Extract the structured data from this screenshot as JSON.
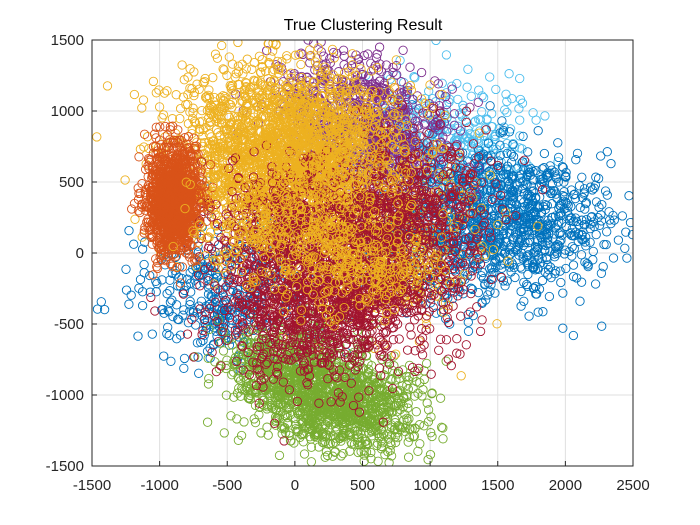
{
  "chart_data": {
    "type": "scatter",
    "title": "True Clustering Result",
    "xlabel": "",
    "ylabel": "",
    "xlim": [
      -1500,
      2500
    ],
    "ylim": [
      -1500,
      1500
    ],
    "xticks": [
      -1500,
      -1000,
      -500,
      0,
      500,
      1000,
      1500,
      2000,
      2500
    ],
    "yticks": [
      -1500,
      -1000,
      -500,
      0,
      500,
      1000,
      1500
    ],
    "xtick_labels": [
      "-1500",
      "-1000",
      "-500",
      "0",
      "500",
      "1000",
      "1500",
      "2000",
      "2500"
    ],
    "ytick_labels": [
      "-1500",
      "-1000",
      "-500",
      "0",
      "500",
      "1000",
      "1500"
    ],
    "grid": true,
    "marker": "open-circle",
    "series": [
      {
        "color": "#4DBEEE",
        "centers": [
          [
            900,
            800
          ],
          [
            1300,
            700
          ]
        ],
        "spread": [
          250,
          220
        ],
        "count": 450
      },
      {
        "color": "#0072BD",
        "centers": [
          [
            1500,
            300
          ],
          [
            1800,
            200
          ],
          [
            -500,
            -300
          ],
          [
            1100,
            100
          ]
        ],
        "spread": [
          300,
          250
        ],
        "count": 1600
      },
      {
        "color": "#7E2F8E",
        "centers": [
          [
            350,
            1000
          ],
          [
            650,
            750
          ]
        ],
        "spread": [
          250,
          220
        ],
        "count": 900
      },
      {
        "color": "#77AC30",
        "centers": [
          [
            200,
            -1000
          ],
          [
            -100,
            -800
          ],
          [
            500,
            -1100
          ]
        ],
        "spread": [
          230,
          170
        ],
        "count": 1600
      },
      {
        "color": "#EDB120",
        "centers": [
          [
            -200,
            850
          ],
          [
            -400,
            600
          ],
          [
            150,
            500
          ],
          [
            600,
            100
          ]
        ],
        "spread": [
          320,
          290
        ],
        "count": 2500
      },
      {
        "color": "#A2142F",
        "centers": [
          [
            -100,
            -350
          ],
          [
            300,
            -400
          ],
          [
            700,
            -150
          ],
          [
            850,
            350
          ],
          [
            0,
            150
          ]
        ],
        "spread": [
          300,
          260
        ],
        "count": 2400
      },
      {
        "color": "#D95319",
        "centers": [
          [
            -900,
            380
          ]
        ],
        "spread": [
          95,
          190
        ],
        "count": 1300
      },
      {
        "color": "#EDB120",
        "centers": [
          [
            300,
            700
          ],
          [
            200,
            1000
          ],
          [
            -150,
            200
          ],
          [
            500,
            -50
          ]
        ],
        "spread": [
          280,
          200
        ],
        "count": 1100
      }
    ]
  }
}
